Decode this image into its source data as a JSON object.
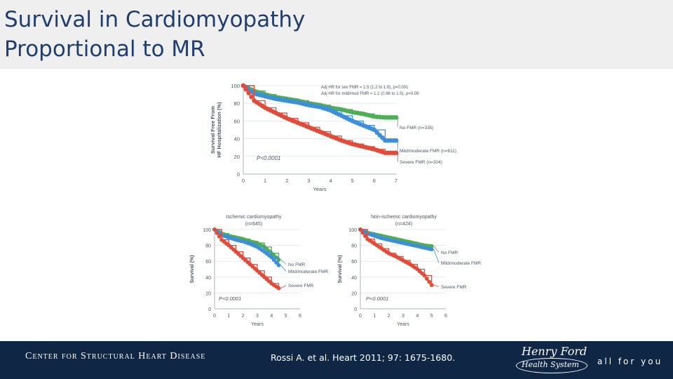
{
  "slide": {
    "title_line1": "Survival in Cardiomyopathy",
    "title_line2": "Proportional to MR"
  },
  "footer": {
    "center_name": "Center for Structural Heart Disease",
    "citation": "Rossi A. et al. Heart 2011; 97: 1675-1680.",
    "logo_line1": "Henry Ford",
    "logo_line2": "Health System",
    "tagline": "all for you"
  },
  "colors": {
    "green": "#4fae57",
    "blue": "#3d8fd8",
    "red": "#e14c3a",
    "footer_bg": "#0f2645",
    "title_text": "#1f3e6e"
  },
  "chart_data": [
    {
      "type": "line",
      "title": "",
      "xlabel": "Years",
      "ylabel": "Survival Free From HF Hospitalization (%)",
      "xlim": [
        0,
        7
      ],
      "ylim": [
        0,
        100
      ],
      "x_ticks": [
        0,
        1,
        2,
        3,
        4,
        5,
        6,
        7
      ],
      "y_ticks": [
        0,
        20,
        40,
        60,
        80,
        100
      ],
      "annotations": [
        "Adj HR for sev FMR = 1.5 (1.2 to 1.9), p=0.001",
        "Adj HR for mild/mod FMR = 1.2 (0.96 to 1.5), p=0.09"
      ],
      "pvalue": "P<0.0001",
      "series": [
        {
          "name": "No FMR (n=335)",
          "color": "green",
          "x": [
            0,
            0.5,
            1,
            1.5,
            2,
            2.5,
            3,
            3.5,
            4,
            4.5,
            5,
            5.5,
            6,
            6.5,
            7
          ],
          "y": [
            100,
            94,
            90,
            87,
            85,
            83,
            80,
            78,
            75,
            73,
            70,
            68,
            65,
            64,
            64
          ]
        },
        {
          "name": "Mild/moderate FMR (n=611)",
          "color": "blue",
          "x": [
            0,
            0.5,
            1,
            1.5,
            2,
            2.5,
            3,
            3.5,
            4,
            4.5,
            5,
            5.5,
            6,
            6.5,
            7
          ],
          "y": [
            100,
            91,
            88,
            85,
            83,
            81,
            78,
            76,
            72,
            66,
            60,
            55,
            50,
            38,
            38
          ]
        },
        {
          "name": "Severe FMR (n=304)",
          "color": "red",
          "x": [
            0,
            0.5,
            1,
            1.5,
            2,
            2.5,
            3,
            3.5,
            4,
            4.5,
            5,
            5.5,
            6,
            6.5,
            7
          ],
          "y": [
            100,
            83,
            75,
            69,
            63,
            58,
            53,
            48,
            43,
            38,
            34,
            31,
            28,
            24,
            24
          ]
        }
      ]
    },
    {
      "type": "line",
      "title": "Ischemic cardiomyopathy",
      "subtitle": "(n=645)",
      "xlabel": "Years",
      "ylabel": "Survival (%)",
      "xlim": [
        0,
        6
      ],
      "ylim": [
        0,
        100
      ],
      "x_ticks": [
        0,
        1,
        2,
        3,
        4,
        5,
        6
      ],
      "y_ticks": [
        0,
        20,
        40,
        60,
        80,
        100
      ],
      "pvalue": "P<0.0001",
      "series": [
        {
          "name": "No FMR",
          "color": "green",
          "x": [
            0,
            0.5,
            1,
            1.5,
            2,
            2.5,
            3,
            3.5,
            4,
            4.5
          ],
          "y": [
            100,
            95,
            92,
            90,
            88,
            85,
            83,
            78,
            70,
            62
          ]
        },
        {
          "name": "Mild/moderate FMR",
          "color": "blue",
          "x": [
            0,
            0.5,
            1,
            1.5,
            2,
            2.5,
            3,
            3.5,
            4,
            4.5
          ],
          "y": [
            100,
            93,
            90,
            87,
            85,
            82,
            78,
            72,
            65,
            55
          ]
        },
        {
          "name": "Severe FMR",
          "color": "red",
          "x": [
            0,
            0.5,
            1,
            1.5,
            2,
            2.5,
            3,
            3.5,
            4,
            4.5
          ],
          "y": [
            100,
            87,
            80,
            72,
            64,
            56,
            48,
            40,
            32,
            26
          ]
        }
      ]
    },
    {
      "type": "line",
      "title": "Non-ischemic cardiomyopathy",
      "subtitle": "(n=424)",
      "xlabel": "Years",
      "ylabel": "Survival (%)",
      "xlim": [
        0,
        6
      ],
      "ylim": [
        0,
        100
      ],
      "x_ticks": [
        0,
        1,
        2,
        3,
        4,
        5,
        6
      ],
      "y_ticks": [
        0,
        20,
        40,
        60,
        80,
        100
      ],
      "pvalue": "P<0.0001",
      "series": [
        {
          "name": "No FMR",
          "color": "green",
          "x": [
            0,
            0.5,
            1,
            1.5,
            2,
            2.5,
            3,
            3.5,
            4,
            4.5,
            5
          ],
          "y": [
            100,
            96,
            94,
            92,
            90,
            88,
            86,
            84,
            82,
            80,
            79
          ]
        },
        {
          "name": "Mild/moderate FMR",
          "color": "blue",
          "x": [
            0,
            0.5,
            1,
            1.5,
            2,
            2.5,
            3,
            3.5,
            4,
            4.5,
            5
          ],
          "y": [
            100,
            95,
            92,
            89,
            87,
            85,
            83,
            81,
            79,
            77,
            75
          ]
        },
        {
          "name": "Severe FMR",
          "color": "red",
          "x": [
            0,
            0.5,
            1,
            1.5,
            2,
            2.5,
            3,
            3.5,
            4,
            4.5,
            5
          ],
          "y": [
            100,
            88,
            82,
            76,
            70,
            66,
            61,
            56,
            50,
            42,
            30
          ]
        }
      ]
    }
  ]
}
